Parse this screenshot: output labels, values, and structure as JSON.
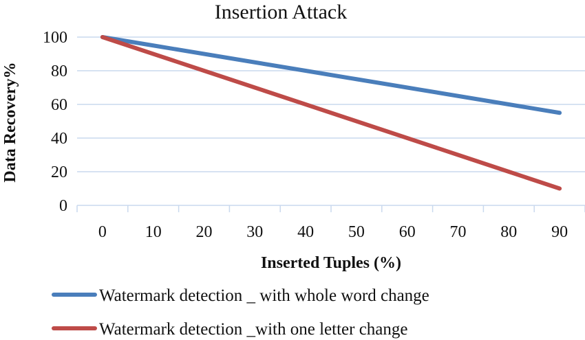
{
  "chart_data": {
    "type": "line",
    "title": "Insertion Attack",
    "xlabel": "Inserted Tuples (%)",
    "ylabel": "Data Recovery%",
    "categories": [
      "0",
      "10",
      "20",
      "30",
      "40",
      "50",
      "60",
      "70",
      "80",
      "90"
    ],
    "ylim": [
      0,
      100
    ],
    "yticks": [
      "0",
      "20",
      "40",
      "60",
      "80",
      "100"
    ],
    "grid": true,
    "legend_placement": "bottom",
    "series": [
      {
        "name": "Watermark detection _ with whole word change",
        "color": "#4a7ebb",
        "values": [
          100,
          95,
          90,
          85,
          80,
          75,
          70,
          65,
          60,
          55
        ]
      },
      {
        "name": "Watermark detection _with one letter change",
        "color": "#be4b48",
        "values": [
          100,
          90,
          80,
          70,
          60,
          50,
          40,
          30,
          20,
          10
        ]
      }
    ]
  }
}
